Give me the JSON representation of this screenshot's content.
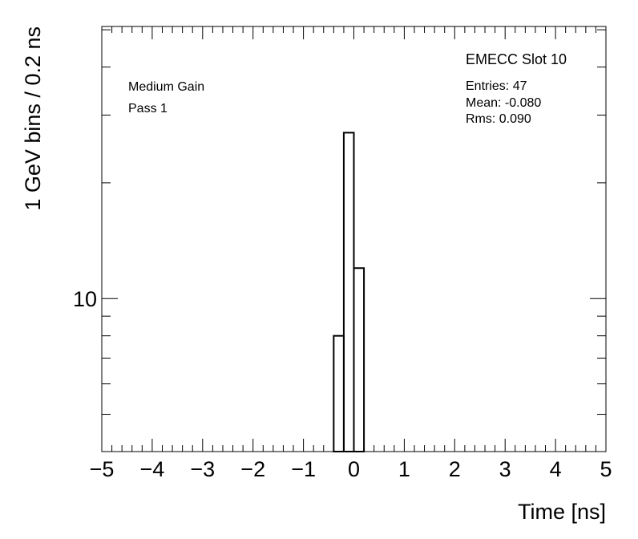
{
  "chart_data": {
    "type": "histogram",
    "title": "EMECC Slot 10",
    "annotations": [
      "Medium Gain",
      "Pass 1"
    ],
    "stats": [
      "Entries: 47",
      "Mean: -0.080",
      "Rms: 0.090"
    ],
    "x_label": "Time [ns]",
    "y_label": "1 GeV bins / 0.2 ns",
    "bins": [
      -0.4,
      -0.2,
      0,
      0.2
    ],
    "values": [
      8,
      27,
      12
    ],
    "color": "#000000",
    "xlim": [
      -5,
      5
    ],
    "xticks": [
      {
        "value": -5,
        "label": "−5"
      },
      {
        "value": -4,
        "label": "−4"
      },
      {
        "value": -3,
        "label": "−3"
      },
      {
        "value": -2,
        "label": "−2"
      },
      {
        "value": -1,
        "label": "−1"
      },
      0,
      1,
      2,
      3,
      4,
      5
    ],
    "ylim": [
      4,
      51
    ],
    "y_log": true,
    "yticks": [
      10
    ],
    "yminor": [
      4,
      5,
      6,
      7,
      8,
      9,
      20,
      30,
      40,
      50
    ]
  }
}
